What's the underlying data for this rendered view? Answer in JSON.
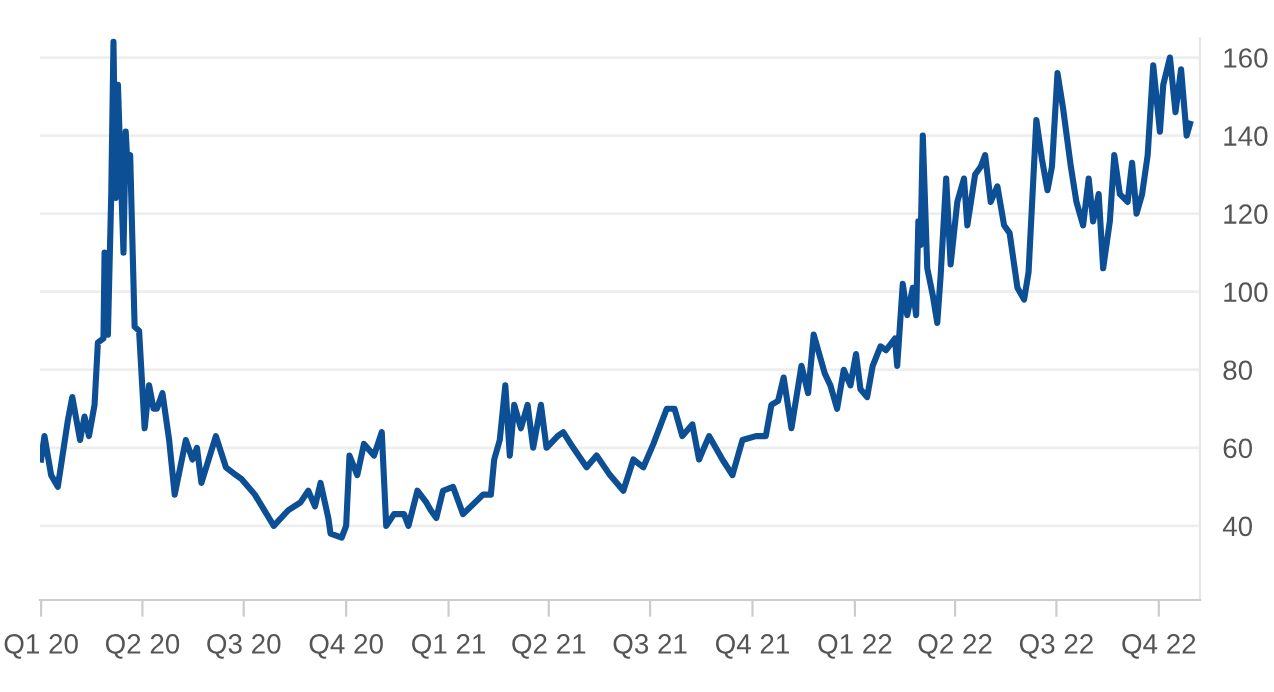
{
  "chart_data": {
    "type": "line",
    "x": [
      "2020-01-01",
      "2020-01-04",
      "2020-01-10",
      "2020-01-16",
      "2020-01-25",
      "2020-01-29",
      "2020-02-05",
      "2020-02-09",
      "2020-02-13",
      "2020-02-18",
      "2020-02-21",
      "2020-02-26",
      "2020-02-27",
      "2020-03-01",
      "2020-03-04",
      "2020-03-06",
      "2020-03-08",
      "2020-03-10",
      "2020-03-13",
      "2020-03-15",
      "2020-03-17",
      "2020-03-19",
      "2020-03-21",
      "2020-03-25",
      "2020-03-29",
      "2020-04-03",
      "2020-04-07",
      "2020-04-11",
      "2020-04-14",
      "2020-04-19",
      "2020-04-25",
      "2020-04-30",
      "2020-05-10",
      "2020-05-16",
      "2020-05-20",
      "2020-05-24",
      "2020-06-06",
      "2020-06-15",
      "2020-06-24",
      "2020-06-29",
      "2020-07-11",
      "2020-07-28",
      "2020-08-10",
      "2020-08-21",
      "2020-08-28",
      "2020-09-03",
      "2020-09-08",
      "2020-09-15",
      "2020-09-17",
      "2020-09-27",
      "2020-10-01",
      "2020-10-04",
      "2020-10-11",
      "2020-10-17",
      "2020-10-26",
      "2020-11-02",
      "2020-11-06",
      "2020-11-13",
      "2020-11-22",
      "2020-11-26",
      "2020-12-04",
      "2020-12-12",
      "2020-12-16",
      "2020-12-21",
      "2020-12-27",
      "2021-01-05",
      "2021-01-14",
      "2021-02-01",
      "2021-02-08",
      "2021-02-11",
      "2021-02-16",
      "2021-02-21",
      "2021-02-25",
      "2021-03-01",
      "2021-03-07",
      "2021-03-13",
      "2021-03-18",
      "2021-03-25",
      "2021-03-30",
      "2021-04-09",
      "2021-04-14",
      "2021-04-23",
      "2021-05-05",
      "2021-05-14",
      "2021-05-26",
      "2021-06-07",
      "2021-06-16",
      "2021-06-25",
      "2021-07-04",
      "2021-07-16",
      "2021-07-23",
      "2021-07-30",
      "2021-08-08",
      "2021-08-14",
      "2021-08-23",
      "2021-09-04",
      "2021-09-13",
      "2021-09-22",
      "2021-10-04",
      "2021-10-13",
      "2021-10-18",
      "2021-10-24",
      "2021-10-29",
      "2021-11-05",
      "2021-11-14",
      "2021-11-20",
      "2021-11-25",
      "2021-12-05",
      "2021-12-10",
      "2021-12-16",
      "2021-12-22",
      "2021-12-28",
      "2022-01-02",
      "2022-01-06",
      "2022-01-12",
      "2022-01-17",
      "2022-01-24",
      "2022-01-29",
      "2022-02-06",
      "2022-02-08",
      "2022-02-13",
      "2022-02-17",
      "2022-02-22",
      "2022-02-25",
      "2022-02-27",
      "2022-03-01",
      "2022-03-03",
      "2022-03-07",
      "2022-03-12",
      "2022-03-16",
      "2022-03-19",
      "2022-03-24",
      "2022-03-28",
      "2022-04-03",
      "2022-04-09",
      "2022-04-12",
      "2022-04-19",
      "2022-04-24",
      "2022-04-28",
      "2022-05-03",
      "2022-05-09",
      "2022-05-15",
      "2022-05-20",
      "2022-05-27",
      "2022-06-02",
      "2022-06-06",
      "2022-06-13",
      "2022-06-18",
      "2022-06-23",
      "2022-06-27",
      "2022-07-02",
      "2022-07-07",
      "2022-07-14",
      "2022-07-19",
      "2022-07-25",
      "2022-07-30",
      "2022-08-03",
      "2022-08-08",
      "2022-08-12",
      "2022-08-18",
      "2022-08-22",
      "2022-08-27",
      "2022-09-03",
      "2022-09-07",
      "2022-09-11",
      "2022-09-16",
      "2022-09-21",
      "2022-09-26",
      "2022-10-02",
      "2022-10-05",
      "2022-10-11",
      "2022-10-16",
      "2022-10-21",
      "2022-10-26",
      "2022-10-29"
    ],
    "series": [
      {
        "color": "#0d4f95",
        "values": [
          57,
          63,
          53,
          50,
          67,
          73,
          62,
          68,
          63,
          71,
          87,
          88,
          110,
          89,
          125,
          164,
          124,
          153,
          127,
          110,
          141,
          130,
          135,
          91,
          90,
          65,
          76,
          70,
          70,
          74,
          62,
          48,
          62,
          57,
          60,
          51,
          63,
          55,
          53,
          52,
          48,
          40,
          44,
          46,
          49,
          45,
          51,
          42,
          38,
          37,
          40,
          58,
          53,
          61,
          58,
          64,
          40,
          43,
          43,
          40,
          49,
          46,
          44,
          42,
          49,
          50,
          43,
          48,
          48,
          57,
          62,
          76,
          58,
          71,
          65,
          71,
          60,
          71,
          60,
          63,
          64,
          60,
          55,
          58,
          53,
          49,
          57,
          55,
          61,
          70,
          70,
          63,
          66,
          57,
          63,
          57,
          53,
          62,
          63,
          63,
          71,
          72,
          78,
          65,
          81,
          74,
          89,
          79,
          76,
          70,
          80,
          76,
          84,
          75,
          73,
          81,
          86,
          85,
          88,
          81,
          102,
          94,
          101,
          94,
          118,
          112,
          140,
          106,
          99,
          92,
          104,
          129,
          107,
          123,
          129,
          117,
          130,
          132,
          135,
          123,
          127,
          117,
          115,
          101,
          98,
          105,
          144,
          134,
          126,
          132,
          156,
          147,
          132,
          123,
          117,
          129,
          118,
          125,
          106,
          118,
          135,
          125,
          123,
          133,
          120,
          125,
          135,
          158,
          141,
          153,
          160,
          146,
          157,
          140,
          143
        ]
      }
    ],
    "xlim": [
      "2019-12-31",
      "2022-11-07"
    ],
    "ylim": [
      21,
      165
    ],
    "xticks": [
      {
        "value": "2020-01-01",
        "label": "Q1 20"
      },
      {
        "value": "2020-04-01",
        "label": "Q2 20"
      },
      {
        "value": "2020-07-01",
        "label": "Q3 20"
      },
      {
        "value": "2020-10-01",
        "label": "Q4 20"
      },
      {
        "value": "2021-01-01",
        "label": "Q1 21"
      },
      {
        "value": "2021-04-01",
        "label": "Q2 21"
      },
      {
        "value": "2021-07-01",
        "label": "Q3 21"
      },
      {
        "value": "2021-10-01",
        "label": "Q4 21"
      },
      {
        "value": "2022-01-01",
        "label": "Q1 22"
      },
      {
        "value": "2022-04-01",
        "label": "Q2 22"
      },
      {
        "value": "2022-07-01",
        "label": "Q3 22"
      },
      {
        "value": "2022-10-01",
        "label": "Q4 22"
      }
    ],
    "yticks": [
      40,
      60,
      80,
      100,
      120,
      140,
      160
    ],
    "grid": "y",
    "marker": "none",
    "line_style": "solid"
  }
}
